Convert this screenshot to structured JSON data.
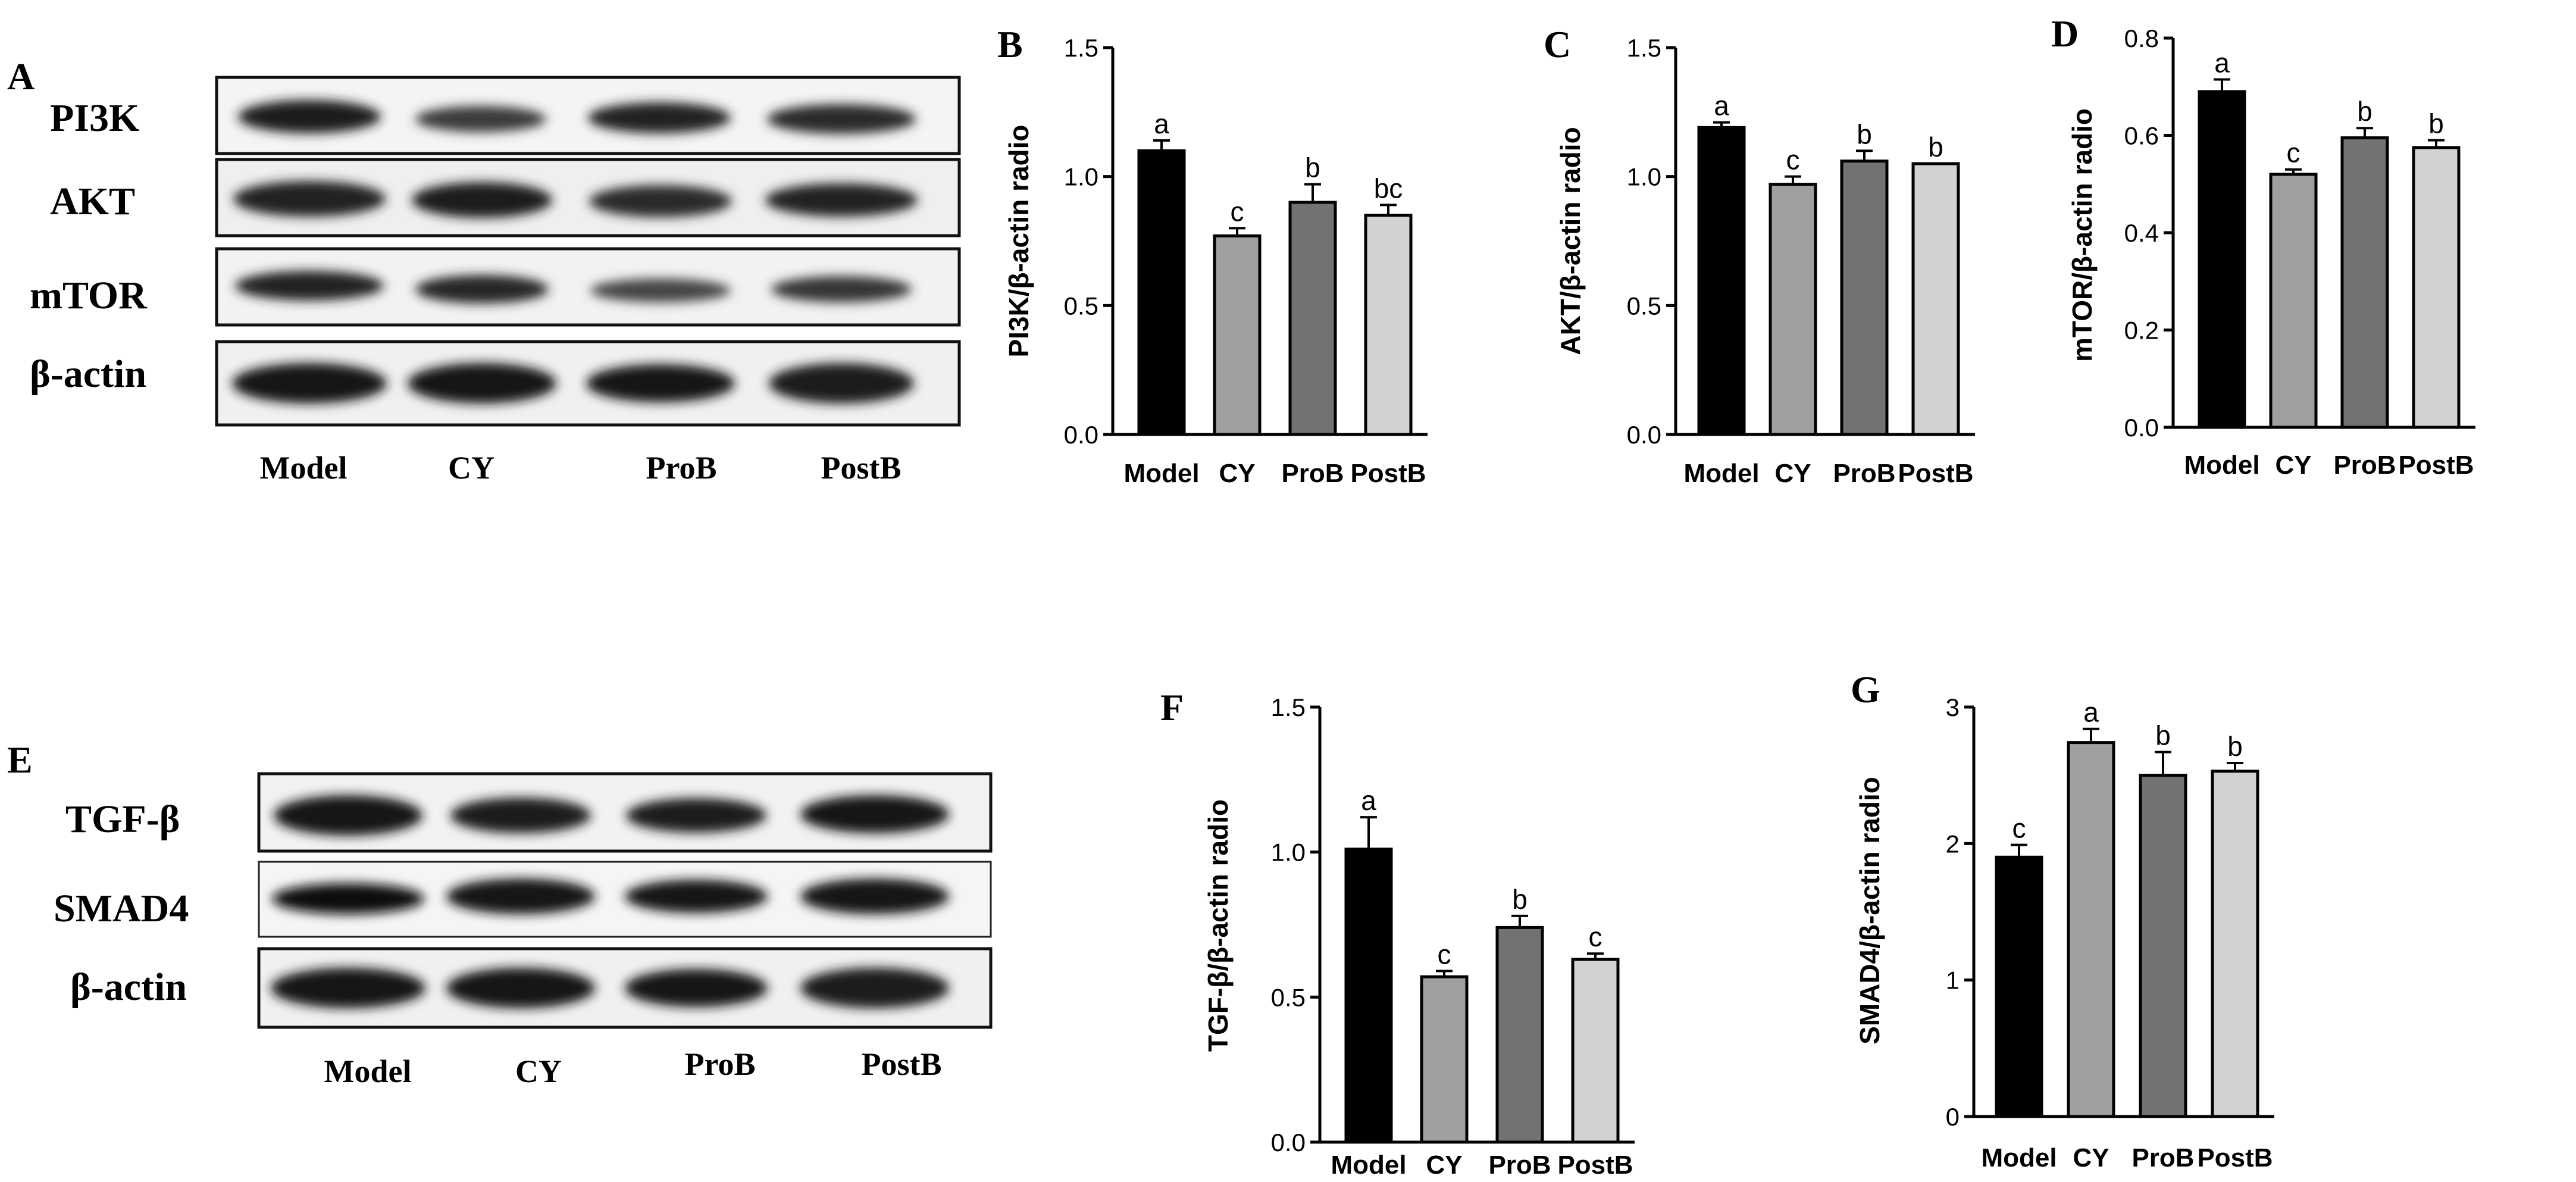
{
  "colors": {
    "Model": "#000000",
    "CY": "#a0a0a3",
    "ProB": "#727274",
    "PostB": "#d2d2d3"
  },
  "blots": [
    {
      "label": "A",
      "proteins": [
        "PI3K",
        "AKT",
        "mTOR",
        "β-actin"
      ],
      "lanes": [
        "Model",
        "CY",
        "ProB",
        "PostB"
      ]
    },
    {
      "label": "E",
      "proteins": [
        "TGF-β",
        "SMAD4",
        "β-actin"
      ],
      "lanes": [
        "Model",
        "CY",
        "ProB",
        "PostB"
      ]
    }
  ],
  "chart_data": [
    {
      "panel": "B",
      "type": "bar",
      "categories": [
        "Model",
        "CY",
        "ProB",
        "PostB"
      ],
      "values": [
        1.1,
        0.77,
        0.9,
        0.85
      ],
      "errors": [
        0.04,
        0.03,
        0.07,
        0.04
      ],
      "letters": [
        "a",
        "c",
        "b",
        "bc"
      ],
      "ylabel": "PI3K/β-actin radio",
      "ylim": [
        0,
        1.5
      ],
      "yticks": [
        "0.0",
        "0.5",
        "1.0",
        "1.5"
      ],
      "ytick_values": [
        0,
        0.5,
        1,
        1.5
      ]
    },
    {
      "panel": "C",
      "type": "bar",
      "categories": [
        "Model",
        "CY",
        "ProB",
        "PostB"
      ],
      "values": [
        1.19,
        0.97,
        1.06,
        1.05
      ],
      "errors": [
        0.02,
        0.03,
        0.04,
        0.0
      ],
      "letters": [
        "a",
        "c",
        "b",
        "b"
      ],
      "ylabel": "AKT/β-actin radio",
      "ylim": [
        0,
        1.5
      ],
      "yticks": [
        "0.0",
        "0.5",
        "1.0",
        "1.5"
      ],
      "ytick_values": [
        0,
        0.5,
        1,
        1.5
      ]
    },
    {
      "panel": "D",
      "type": "bar",
      "categories": [
        "Model",
        "CY",
        "ProB",
        "PostB"
      ],
      "values": [
        0.69,
        0.52,
        0.595,
        0.575
      ],
      "errors": [
        0.025,
        0.01,
        0.02,
        0.015
      ],
      "letters": [
        "a",
        "c",
        "b",
        "b"
      ],
      "ylabel": "mTOR/β-actin radio",
      "ylim": [
        0,
        0.8
      ],
      "yticks": [
        "0.0",
        "0.2",
        "0.4",
        "0.6",
        "0.8"
      ],
      "ytick_values": [
        0,
        0.2,
        0.4,
        0.6,
        0.8
      ]
    },
    {
      "panel": "F",
      "type": "bar",
      "categories": [
        "Model",
        "CY",
        "ProB",
        "PostB"
      ],
      "values": [
        1.01,
        0.57,
        0.74,
        0.63
      ],
      "errors": [
        0.11,
        0.02,
        0.04,
        0.02
      ],
      "letters": [
        "a",
        "c",
        "b",
        "c"
      ],
      "ylabel": "TGF-β/β-actin radio",
      "ylim": [
        0,
        1.5
      ],
      "yticks": [
        "0.0",
        "0.5",
        "1.0",
        "1.5"
      ],
      "ytick_values": [
        0,
        0.5,
        1,
        1.5
      ]
    },
    {
      "panel": "G",
      "type": "bar",
      "categories": [
        "Model",
        "CY",
        "ProB",
        "PostB"
      ],
      "values": [
        1.9,
        2.74,
        2.5,
        2.53
      ],
      "errors": [
        0.09,
        0.1,
        0.17,
        0.06
      ],
      "letters": [
        "c",
        "a",
        "b",
        "b"
      ],
      "ylabel": "SMAD4/β-actin radio",
      "ylim": [
        0,
        3
      ],
      "yticks": [
        "0",
        "1",
        "2",
        "3"
      ],
      "ytick_values": [
        0,
        1,
        2,
        3
      ]
    }
  ]
}
